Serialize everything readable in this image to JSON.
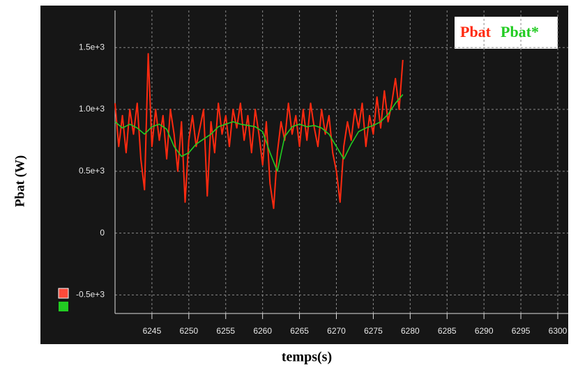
{
  "chart_data": {
    "type": "line",
    "ylabel": "Pbat (W)",
    "xlabel": "temps(s)",
    "xlim": [
      6240,
      6300
    ],
    "xticks": [
      6245,
      6250,
      6255,
      6260,
      6265,
      6270,
      6275,
      6280,
      6285,
      6290,
      6295,
      6300
    ],
    "ylim": [
      -650,
      1800
    ],
    "yticks": [
      {
        "value": -500,
        "label": "-0.5e+3"
      },
      0,
      {
        "value": 500,
        "label": "0.5e+3"
      },
      {
        "value": 1000,
        "label": "1.0e+3"
      },
      {
        "value": 1500,
        "label": "1.5e+3"
      }
    ],
    "grid": true,
    "legend": "upper right",
    "series": [
      {
        "name": "Pbat",
        "color": "#ff2a10",
        "x": [
          6240,
          6240.5,
          6241,
          6241.5,
          6242,
          6242.5,
          6243,
          6243.5,
          6244,
          6244.5,
          6245,
          6245.5,
          6246,
          6246.5,
          6247,
          6247.5,
          6248,
          6248.5,
          6249,
          6249.5,
          6250,
          6250.5,
          6251,
          6251.5,
          6252,
          6252.5,
          6253,
          6253.5,
          6254,
          6254.5,
          6255,
          6255.5,
          6256,
          6256.5,
          6257,
          6257.5,
          6258,
          6258.5,
          6259,
          6259.5,
          6260,
          6260.5,
          6261,
          6261.5,
          6262,
          6262.5,
          6263,
          6263.5,
          6264,
          6264.5,
          6265,
          6265.5,
          6266,
          6266.5,
          6267,
          6267.5,
          6268,
          6268.5,
          6269,
          6269.5,
          6270,
          6270.5,
          6271,
          6271.5,
          6272,
          6272.5,
          6273,
          6273.5,
          6274,
          6274.5,
          6275,
          6275.5,
          6276,
          6276.5,
          6277,
          6277.5,
          6278,
          6278.5,
          6279
        ],
        "values": [
          1050,
          700,
          950,
          650,
          1000,
          800,
          1050,
          600,
          350,
          1450,
          700,
          1000,
          750,
          950,
          600,
          1000,
          800,
          500,
          900,
          250,
          750,
          950,
          700,
          850,
          1000,
          300,
          900,
          650,
          1050,
          800,
          950,
          700,
          1000,
          850,
          1050,
          750,
          950,
          650,
          1000,
          800,
          550,
          900,
          400,
          200,
          650,
          900,
          750,
          1050,
          800,
          950,
          700,
          1000,
          750,
          1050,
          850,
          700,
          1000,
          800,
          950,
          650,
          500,
          250,
          700,
          900,
          750,
          1000,
          850,
          1050,
          700,
          950,
          800,
          1100,
          850,
          1150,
          900,
          1050,
          1250,
          1000,
          1400
        ]
      },
      {
        "name": "Pbat*",
        "color": "#22cc22",
        "x": [
          6240,
          6241,
          6242,
          6243,
          6244,
          6245,
          6246,
          6247,
          6248,
          6249,
          6250,
          6251,
          6252,
          6253,
          6254,
          6255,
          6256,
          6257,
          6258,
          6259,
          6260,
          6261,
          6262,
          6263,
          6264,
          6265,
          6266,
          6267,
          6268,
          6269,
          6270,
          6271,
          6272,
          6273,
          6274,
          6275,
          6276,
          6277,
          6278,
          6279
        ],
        "values": [
          900,
          850,
          880,
          850,
          800,
          860,
          880,
          840,
          700,
          620,
          650,
          720,
          760,
          800,
          860,
          880,
          900,
          880,
          870,
          860,
          820,
          650,
          500,
          780,
          860,
          880,
          860,
          870,
          850,
          800,
          700,
          600,
          720,
          820,
          850,
          870,
          900,
          960,
          1050,
          1120
        ]
      }
    ]
  }
}
